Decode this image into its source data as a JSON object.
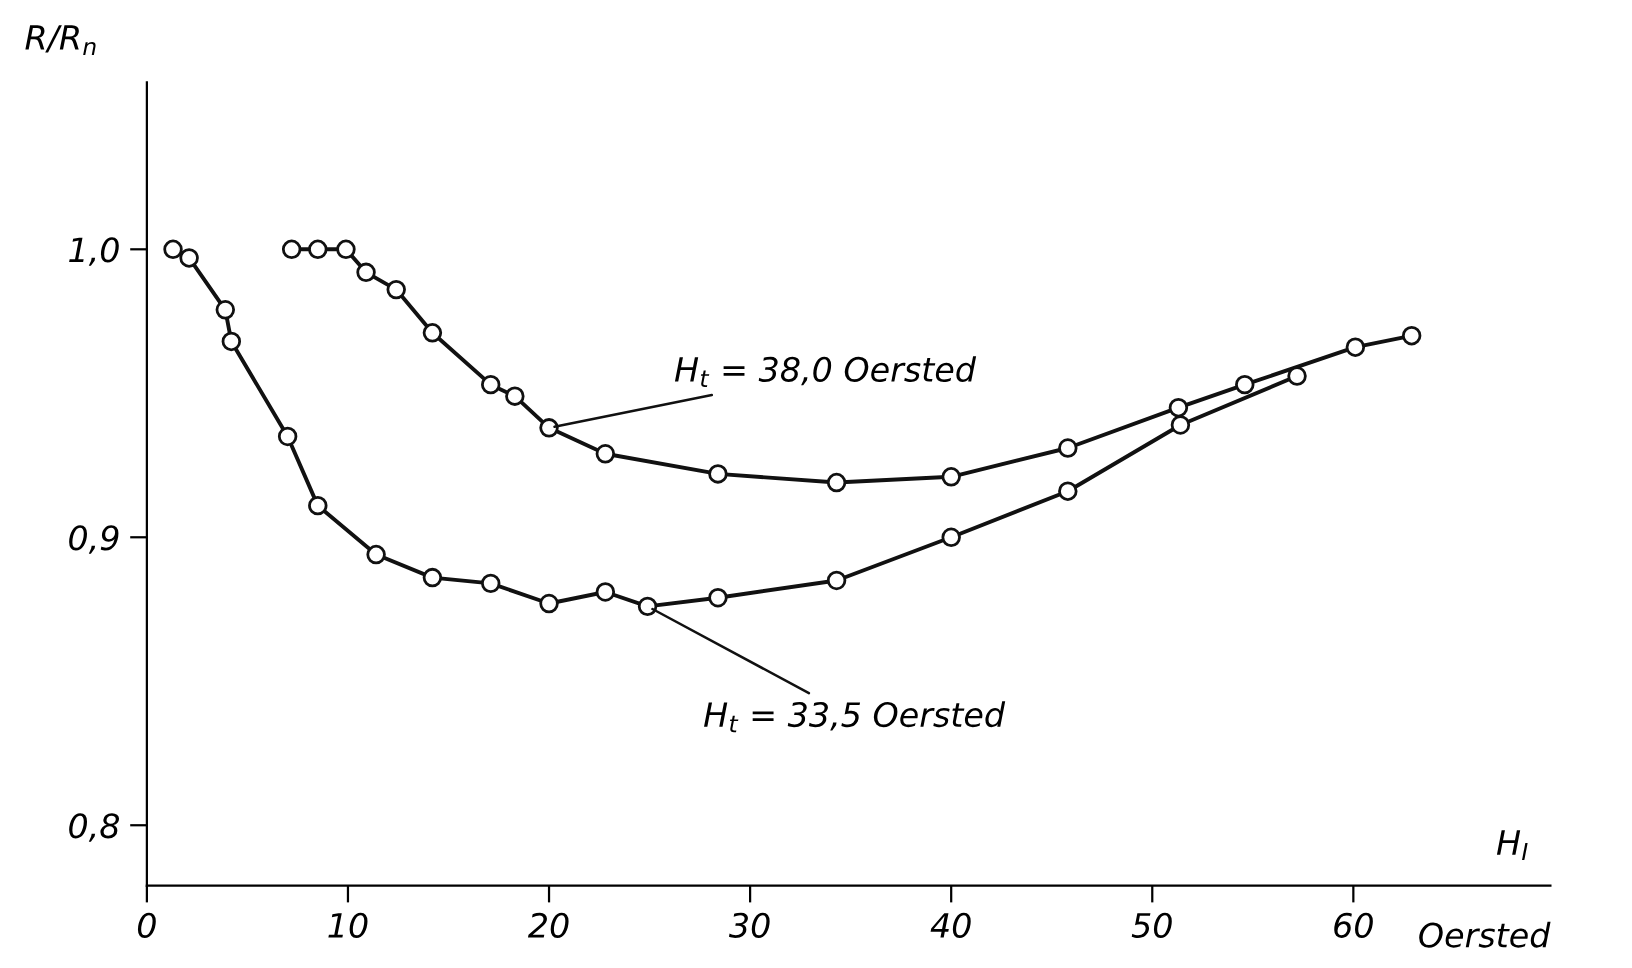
{
  "chart_data": {
    "type": "line",
    "xlabel": "H$_{I}$",
    "ylabel": "R/R$_{n}$",
    "xlim": [
      0,
      69.8
    ],
    "ylim": [
      0.779,
      1.058
    ],
    "xticks": [
      0,
      10,
      20,
      30,
      40,
      50,
      60
    ],
    "yticks": [
      {
        "value": 0.8,
        "label": "0,8"
      },
      {
        "value": 0.9,
        "label": "0,9"
      },
      {
        "value": 1.0,
        "label": "1,0"
      }
    ],
    "marker": "circle",
    "line_style": "solid",
    "grid": false,
    "legend": false,
    "series": [
      {
        "color": "#111111",
        "x": [
          7.2,
          8.5,
          9.9,
          10.9,
          12.4,
          14.2,
          17.1,
          18.3,
          20.0,
          22.8,
          28.4,
          34.3,
          40.0,
          45.8,
          51.3,
          54.6,
          60.1,
          62.9
        ],
        "values": [
          1.0,
          1.0,
          1.0,
          0.992,
          0.986,
          0.971,
          0.953,
          0.949,
          0.938,
          0.929,
          0.922,
          0.919,
          0.921,
          0.931,
          0.945,
          0.953,
          0.966,
          0.97
        ]
      },
      {
        "color": "#111111",
        "x": [
          1.3,
          2.1,
          3.9,
          4.2,
          7.0,
          8.5,
          11.4,
          14.2,
          17.1,
          20.0,
          22.8,
          24.9,
          28.4,
          34.3,
          40.0,
          45.8,
          51.4,
          57.2
        ],
        "values": [
          1.0,
          0.997,
          0.979,
          0.968,
          0.935,
          0.911,
          0.894,
          0.886,
          0.884,
          0.877,
          0.881,
          0.876,
          0.879,
          0.885,
          0.9,
          0.916,
          0.939,
          0.956
        ]
      }
    ],
    "annotations": [
      {
        "text": "H$_{t}$ = 38,0 Oersted",
        "x": 20.0,
        "y": 0.938
      },
      {
        "text": "H$_{t}$ = 33,5 Oersted",
        "x": 24.9,
        "y": 0.876
      },
      "Oersted"
    ]
  }
}
